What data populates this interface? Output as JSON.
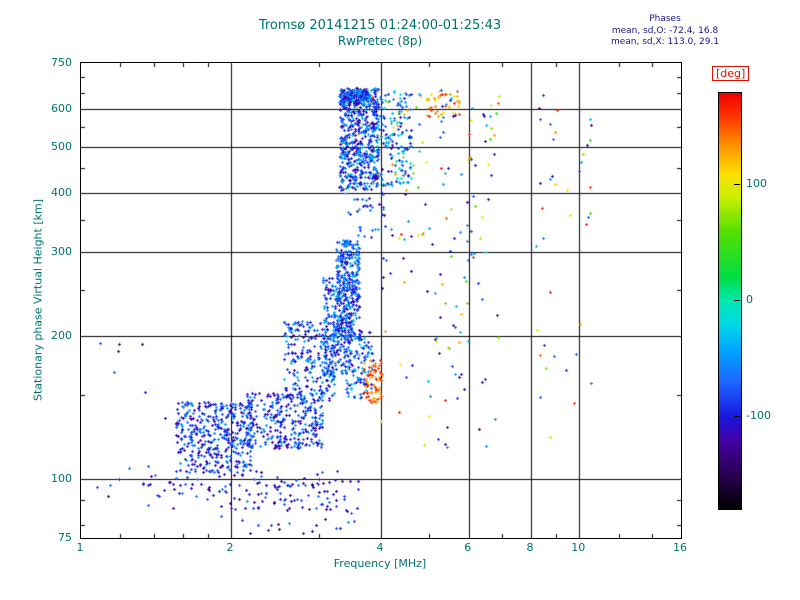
{
  "colors": {
    "background": "#ffffff",
    "title": "#007272",
    "axis": "#007272",
    "annotation": "#16168c",
    "deg_label": "#dd1100",
    "frame": "#000000"
  },
  "chart_data": {
    "type": "scatter",
    "title": "Tromsø 20141215 01:24:00-01:25:43",
    "subtitle": "RwPretec (8p)",
    "xlabel": "Frequency [MHz]",
    "ylabel": "Stationary phase Virtual Height [km]",
    "x_scale": "log",
    "y_scale": "log",
    "xlim": [
      1,
      16
    ],
    "ylim": [
      75,
      750
    ],
    "x_ticks": [
      1,
      2,
      4,
      6,
      8,
      10,
      16
    ],
    "y_ticks": [
      75,
      100,
      200,
      300,
      400,
      500,
      600,
      750
    ],
    "x_grid": [
      2,
      4,
      6,
      8,
      10
    ],
    "y_grid": [
      100,
      200,
      300,
      400,
      500,
      600
    ],
    "x_minor": [
      1.2,
      1.4,
      1.6,
      1.8,
      3,
      5,
      7,
      9,
      12,
      14
    ],
    "y_minor": [
      80,
      90,
      150,
      250,
      350,
      450,
      550,
      650,
      700
    ],
    "grid": true,
    "annotations": {
      "phases_title": "Phases",
      "o_line": "mean, sd,O: -72.4, 16.8",
      "x_line": "mean, sd,X: 113.0, 29.1"
    },
    "colorbar": {
      "label": "[deg]",
      "ticks": [
        100,
        0,
        -100
      ],
      "range": [
        -180,
        180
      ],
      "stops": [
        [
          -180,
          "#000000"
        ],
        [
          -150,
          "#2a0050"
        ],
        [
          -120,
          "#4400a8"
        ],
        [
          -100,
          "#1818e0"
        ],
        [
          -70,
          "#1e66ff"
        ],
        [
          -45,
          "#00a0ff"
        ],
        [
          -20,
          "#00d8e8"
        ],
        [
          0,
          "#00e8b0"
        ],
        [
          20,
          "#00dd44"
        ],
        [
          60,
          "#55e000"
        ],
        [
          90,
          "#ccee00"
        ],
        [
          110,
          "#ffe000"
        ],
        [
          135,
          "#ff9000"
        ],
        [
          160,
          "#ff3300"
        ],
        [
          180,
          "#ee0000"
        ]
      ]
    },
    "marker": "plus",
    "seed": 20141215,
    "clusters": [
      {
        "name": "e-core",
        "n": 420,
        "x": [
          1.55,
          2.2
        ],
        "y": [
          103,
          145
        ],
        "phase": [
          -130,
          -45
        ]
      },
      {
        "name": "e-band",
        "n": 300,
        "x": [
          2.15,
          3.05
        ],
        "y": [
          116,
          152
        ],
        "phase": [
          -125,
          -40
        ]
      },
      {
        "name": "e-under",
        "n": 80,
        "x": [
          1.35,
          3.3
        ],
        "y": [
          86,
          104
        ],
        "phase": [
          -140,
          -60
        ]
      },
      {
        "name": "bottom-row",
        "n": 50,
        "x": [
          1.1,
          3.7
        ],
        "y": [
          92,
          100
        ],
        "phase": [
          -140,
          -60
        ]
      },
      {
        "name": "low-sparse",
        "n": 35,
        "x": [
          1.9,
          3.6
        ],
        "y": [
          76,
          92
        ],
        "phase": [
          -140,
          -55
        ]
      },
      {
        "name": "rise-lower",
        "n": 230,
        "x": [
          2.55,
          3.25
        ],
        "y": [
          146,
          215
        ],
        "phase": [
          -125,
          -35
        ]
      },
      {
        "name": "rise-mid",
        "n": 260,
        "x": [
          3.05,
          3.5
        ],
        "y": [
          165,
          265
        ],
        "phase": [
          -120,
          -30
        ]
      },
      {
        "name": "rise-steep",
        "n": 300,
        "x": [
          3.25,
          3.62
        ],
        "y": [
          195,
          318
        ],
        "phase": [
          -120,
          -30
        ]
      },
      {
        "name": "rise-arm",
        "n": 110,
        "x": [
          3.4,
          3.85
        ],
        "y": [
          148,
          205
        ],
        "phase": [
          -120,
          -20
        ]
      },
      {
        "name": "orange-blob",
        "n": 65,
        "x": [
          3.7,
          4.02
        ],
        "y": [
          145,
          178
        ],
        "phase": [
          120,
          175
        ]
      },
      {
        "name": "f-cloud",
        "n": 620,
        "x": [
          3.3,
          3.95
        ],
        "y": [
          405,
          665
        ],
        "phase": [
          -130,
          -25
        ],
        "phase2": [
          80,
          170
        ],
        "p2": 0.02
      },
      {
        "name": "f-top-edge",
        "n": 140,
        "x": [
          3.3,
          3.78
        ],
        "y": [
          612,
          658
        ],
        "phase": [
          -130,
          -40
        ]
      },
      {
        "name": "f-right",
        "n": 150,
        "x": [
          3.92,
          4.6
        ],
        "y": [
          415,
          655
        ],
        "phase": [
          -120,
          0
        ],
        "phase2": [
          60,
          160
        ],
        "p2": 0.08
      },
      {
        "name": "top-orange",
        "n": 40,
        "x": [
          4.9,
          5.75
        ],
        "y": [
          580,
          655
        ],
        "phase": [
          95,
          175
        ]
      },
      {
        "name": "upper-sparse",
        "n": 30,
        "x": [
          4.3,
          6.1
        ],
        "y": [
          460,
          660
        ],
        "phase": [
          -120,
          -20
        ],
        "phase2": [
          40,
          170
        ],
        "p2": 0.4
      },
      {
        "name": "mid-sparse",
        "n": 100,
        "x": [
          3.95,
          6.2
        ],
        "y": [
          115,
          460
        ],
        "phase": [
          -140,
          -30
        ],
        "phase2": [
          40,
          170
        ],
        "p2": 0.3
      },
      {
        "name": "gap-sparse",
        "n": 30,
        "x": [
          3.3,
          4.1
        ],
        "y": [
          320,
          405
        ],
        "phase": [
          -125,
          -35
        ]
      },
      {
        "name": "right-col-1",
        "n": 28,
        "x": [
          6.25,
          6.95
        ],
        "y": [
          95,
          645
        ],
        "phase": [
          -140,
          -30
        ],
        "phase2": [
          40,
          170
        ],
        "p2": 0.35
      },
      {
        "name": "right-col-2",
        "n": 22,
        "x": [
          8.2,
          9.05
        ],
        "y": [
          95,
          645
        ],
        "phase": [
          -140,
          -30
        ],
        "phase2": [
          40,
          170
        ],
        "p2": 0.35
      },
      {
        "name": "right-col-3",
        "n": 18,
        "x": [
          9.4,
          10.6
        ],
        "y": [
          140,
          630
        ],
        "phase": [
          -140,
          -30
        ],
        "phase2": [
          40,
          170
        ],
        "p2": 0.35
      },
      {
        "name": "far-left",
        "n": 10,
        "x": [
          1.05,
          1.5
        ],
        "y": [
          92,
          195
        ],
        "phase": [
          -140,
          -60
        ]
      }
    ]
  }
}
